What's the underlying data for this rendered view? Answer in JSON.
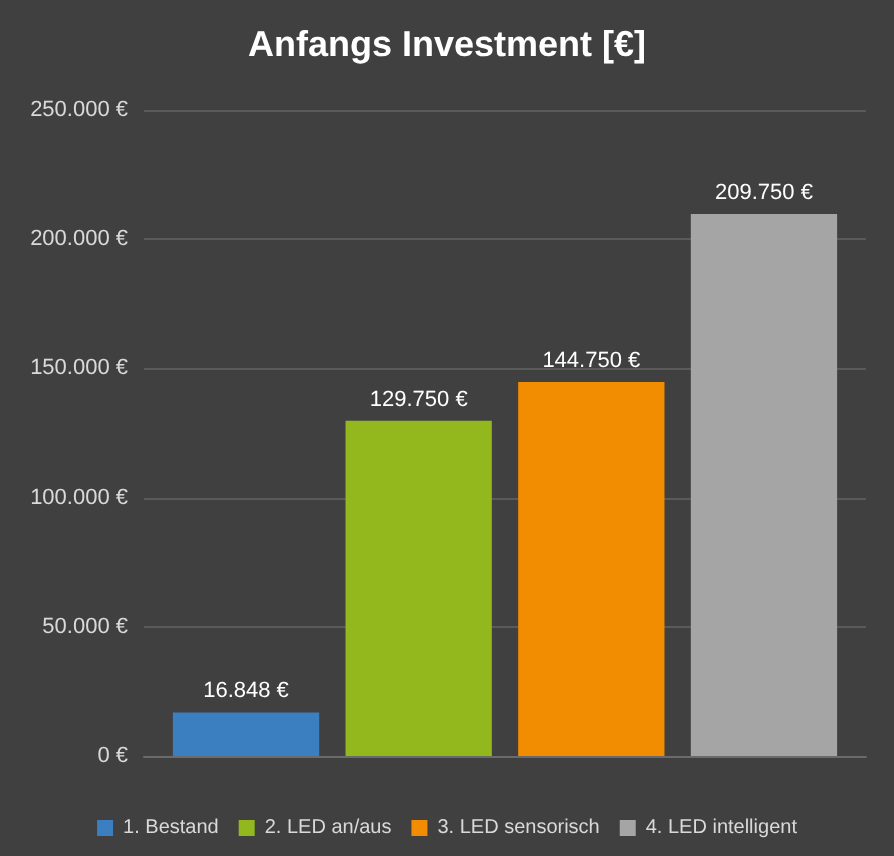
{
  "chart_data": {
    "type": "bar",
    "title": "Anfangs Investment [€]",
    "categories": [
      null
    ],
    "series": [
      {
        "name": "1. Bestand",
        "color": "#3b7fc0",
        "values": [
          16848
        ],
        "value_labels": [
          "16.848 €"
        ]
      },
      {
        "name": "2. LED an/aus",
        "color": "#92b81e",
        "values": [
          129750
        ],
        "value_labels": [
          "129.750 €"
        ]
      },
      {
        "name": "3. LED sensorisch",
        "color": "#f28c00",
        "values": [
          144750
        ],
        "value_labels": [
          "144.750 €"
        ]
      },
      {
        "name": "4. LED intelligent",
        "color": "#a5a5a5",
        "values": [
          209750
        ],
        "value_labels": [
          "209.750 €"
        ]
      }
    ],
    "ylim": [
      0,
      250000
    ],
    "yticks": [
      {
        "value": 0,
        "label": "0 €"
      },
      {
        "value": 50000,
        "label": "50.000 €"
      },
      {
        "value": 100000,
        "label": "100.000 €"
      },
      {
        "value": 150000,
        "label": "150.000 €"
      },
      {
        "value": 200000,
        "label": "200.000 €"
      },
      {
        "value": 250000,
        "label": "250.000 €"
      }
    ],
    "grid": "y",
    "legend": "bottom"
  }
}
